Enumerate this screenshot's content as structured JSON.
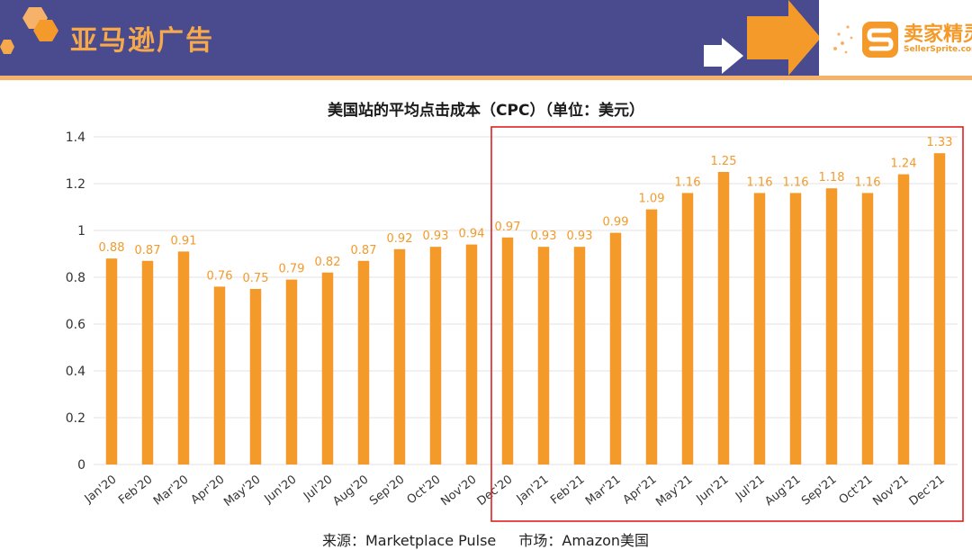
{
  "header": {
    "title": "亚马逊广告",
    "brand_name": "卖家精灵",
    "brand_url": "SellerSprite.com"
  },
  "colors": {
    "header_bg": "#4a4a8e",
    "accent_orange": "#f39a2b",
    "bar": "#f39a2b",
    "highlight_box": "#e02020"
  },
  "icons": [
    "hexagon-logo-icon",
    "arrow-icon",
    "sellersprite-logo-icon"
  ],
  "chart_data": {
    "type": "bar",
    "title": "美国站的平均点击成本（CPC）（单位：美元）",
    "categories": [
      "Jan'20",
      "Feb'20",
      "Mar'20",
      "Apr'20",
      "May'20",
      "Jun'20",
      "Jul'20",
      "Aug'20",
      "Sep'20",
      "Oct'20",
      "Nov'20",
      "Dec'20",
      "Jan'21",
      "Feb'21",
      "Mar'21",
      "Apr'21",
      "May'21",
      "Jun'21",
      "Jul'21",
      "Aug'21",
      "Sep'21",
      "Oct'21",
      "Nov'21",
      "Dec'21"
    ],
    "values": [
      0.88,
      0.87,
      0.91,
      0.76,
      0.75,
      0.79,
      0.82,
      0.87,
      0.92,
      0.93,
      0.94,
      0.97,
      0.93,
      0.93,
      0.99,
      1.09,
      1.16,
      1.25,
      1.16,
      1.16,
      1.18,
      1.16,
      1.24,
      1.33
    ],
    "ylim": [
      0,
      1.4
    ],
    "yticks": [
      "0",
      "0.2",
      "0.4",
      "0.6",
      "0.8",
      "1",
      "1.2",
      "1.4"
    ],
    "grid": true,
    "highlight": "Dec'20 – Dec'21"
  },
  "footer": {
    "source": "来源：Marketplace Pulse",
    "market": "市场：Amazon美国"
  }
}
